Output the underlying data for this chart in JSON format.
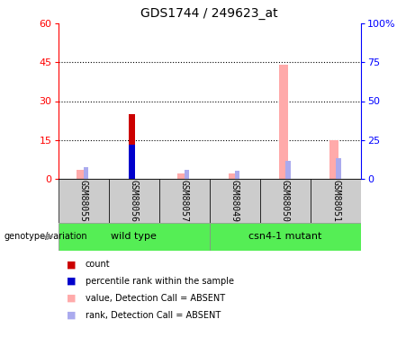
{
  "title": "GDS1744 / 249623_at",
  "samples": [
    "GSM88055",
    "GSM88056",
    "GSM88057",
    "GSM88049",
    "GSM88050",
    "GSM88051"
  ],
  "group_labels": [
    "wild type",
    "csn4-1 mutant"
  ],
  "count_values": [
    0,
    25,
    0,
    0,
    0,
    0
  ],
  "percentile_values": [
    0,
    13,
    0,
    0,
    0,
    0
  ],
  "absent_value_values": [
    3.5,
    0,
    2.0,
    2.0,
    44,
    15
  ],
  "absent_rank_values": [
    4.5,
    0,
    3.5,
    3.0,
    7.0,
    8.0
  ],
  "ylim_left": [
    0,
    60
  ],
  "ylim_right": [
    0,
    100
  ],
  "yticks_left": [
    0,
    15,
    30,
    45,
    60
  ],
  "yticks_right": [
    0,
    25,
    50,
    75,
    100
  ],
  "ytick_labels_right": [
    "0",
    "25",
    "50",
    "75",
    "100%"
  ],
  "color_count": "#cc0000",
  "color_percentile": "#0000cc",
  "color_absent_value": "#ffaaaa",
  "color_absent_rank": "#aaaaee",
  "sample_area_bg": "#cccccc",
  "group_box_color": "#55ee55",
  "legend_items": [
    {
      "color": "#cc0000",
      "label": "count"
    },
    {
      "color": "#0000cc",
      "label": "percentile rank within the sample"
    },
    {
      "color": "#ffaaaa",
      "label": "value, Detection Call = ABSENT"
    },
    {
      "color": "#aaaaee",
      "label": "rank, Detection Call = ABSENT"
    }
  ]
}
